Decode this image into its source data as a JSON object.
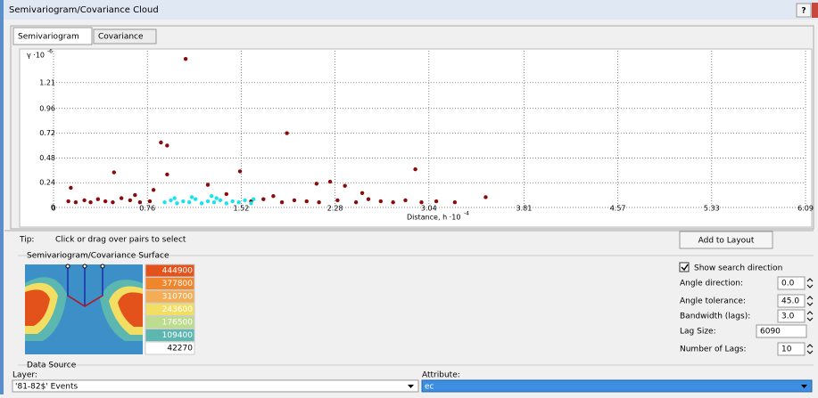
{
  "window": {
    "title": "Semivariogram/Covariance Cloud",
    "help": "?"
  },
  "tabs": [
    "Semivariogram",
    "Covariance"
  ],
  "chart_data": {
    "type": "scatter",
    "y_label": "γ ·10",
    "y_label_exp": "-6",
    "x_label": "Distance, h ·10",
    "x_label_exp": "-4",
    "xlim": [
      0,
      6.09
    ],
    "xticks": [
      0,
      0.76,
      1.52,
      2.28,
      3.04,
      3.81,
      4.57,
      5.33,
      6.09
    ],
    "ylim": [
      0,
      1.45
    ],
    "yticks": [
      0,
      0.24,
      0.48,
      0.72,
      0.96,
      1.21
    ],
    "grid": true,
    "series": [
      {
        "color": "#8b0a0a",
        "x": [
          1.07,
          0.87,
          0.92,
          1.89,
          0.49,
          0.92,
          1.51,
          2.93,
          0.14,
          1.25,
          2.24,
          2.13,
          2.36,
          0.81,
          3.5,
          1.78,
          0.12,
          0.18,
          0.25,
          0.3,
          0.36,
          0.42,
          0.48,
          0.55,
          0.62,
          0.7,
          0.78,
          1.6,
          1.7,
          1.85,
          1.95,
          2.05,
          2.15,
          2.3,
          2.45,
          2.55,
          2.65,
          2.75,
          2.85,
          2.98,
          3.1,
          3.25,
          0.66,
          1.4,
          2.5
        ],
        "values": [
          1.44,
          0.63,
          0.6,
          0.72,
          0.34,
          0.32,
          0.35,
          0.37,
          0.19,
          0.22,
          0.25,
          0.23,
          0.21,
          0.17,
          0.1,
          0.11,
          0.06,
          0.05,
          0.07,
          0.05,
          0.08,
          0.06,
          0.05,
          0.09,
          0.07,
          0.05,
          0.06,
          0.06,
          0.08,
          0.05,
          0.07,
          0.06,
          0.05,
          0.07,
          0.05,
          0.08,
          0.06,
          0.05,
          0.07,
          0.05,
          0.06,
          0.05,
          0.12,
          0.13,
          0.14
        ]
      },
      {
        "color": "#19e3ee",
        "x": [
          0.9,
          0.95,
          1.0,
          1.05,
          1.1,
          1.15,
          1.2,
          1.25,
          1.3,
          1.35,
          1.4,
          1.45,
          1.5,
          1.55,
          1.6,
          1.12,
          1.32,
          0.98,
          1.62,
          1.28
        ],
        "values": [
          0.05,
          0.07,
          0.04,
          0.06,
          0.05,
          0.08,
          0.04,
          0.06,
          0.05,
          0.07,
          0.04,
          0.06,
          0.05,
          0.07,
          0.04,
          0.1,
          0.09,
          0.09,
          0.08,
          0.11
        ]
      }
    ]
  },
  "tip": {
    "label": "Tip:",
    "text": "Click or drag over pairs to select"
  },
  "add_button": "Add to Layout",
  "surface": {
    "title": "Semivariogram/Covariance Surface",
    "legend": [
      {
        "label": "444900",
        "color": "#e4521b"
      },
      {
        "label": "377800",
        "color": "#f0862c"
      },
      {
        "label": "310700",
        "color": "#f4ad55"
      },
      {
        "label": "243600",
        "color": "#f2de62"
      },
      {
        "label": "176500",
        "color": "#bcdc8e"
      },
      {
        "label": "109400",
        "color": "#5db7b1"
      },
      {
        "label": "42270",
        "color": "#ffffff"
      }
    ]
  },
  "search": {
    "show": "Show search direction",
    "fields": [
      {
        "label": "Angle direction:",
        "value": "0.0"
      },
      {
        "label": "Angle tolerance:",
        "value": "45.0"
      },
      {
        "label": "Bandwidth (lags):",
        "value": "3.0"
      },
      {
        "label": "Lag Size:",
        "value": "6090"
      },
      {
        "label": "Number of Lags:",
        "value": "10"
      }
    ]
  },
  "data_source": {
    "title": "Data Source",
    "layer_label": "Layer:",
    "layer": "'81-82$' Events",
    "attribute_label": "Attribute:",
    "attribute": "ec"
  }
}
